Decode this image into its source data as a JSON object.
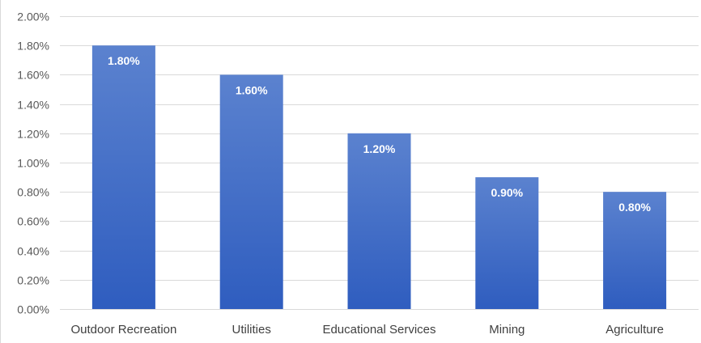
{
  "chart_data": {
    "type": "bar",
    "title": "",
    "xlabel": "",
    "ylabel": "",
    "categories": [
      "Outdoor Recreation",
      "Utilities",
      "Educational Services",
      "Mining",
      "Agriculture"
    ],
    "values": [
      1.8,
      1.6,
      1.2,
      0.9,
      0.8
    ],
    "data_labels": [
      "1.80%",
      "1.60%",
      "1.20%",
      "0.90%",
      "0.80%"
    ],
    "ylim": [
      0,
      2.0
    ],
    "y_ticks": [
      0,
      0.2,
      0.4,
      0.6,
      0.8,
      1.0,
      1.2,
      1.4,
      1.6,
      1.8,
      2.0
    ],
    "y_tick_labels": [
      "0.00%",
      "0.20%",
      "0.40%",
      "0.60%",
      "0.80%",
      "1.00%",
      "1.20%",
      "1.40%",
      "1.60%",
      "1.80%",
      "2.00%"
    ],
    "grid": true,
    "legend": "none",
    "colors": {
      "bar_top": "#5b82cf",
      "bar_bottom": "#2f5dbf",
      "gridline": "#d9d9d9",
      "data_label": "#ffffff",
      "tick_label": "#595959"
    }
  }
}
